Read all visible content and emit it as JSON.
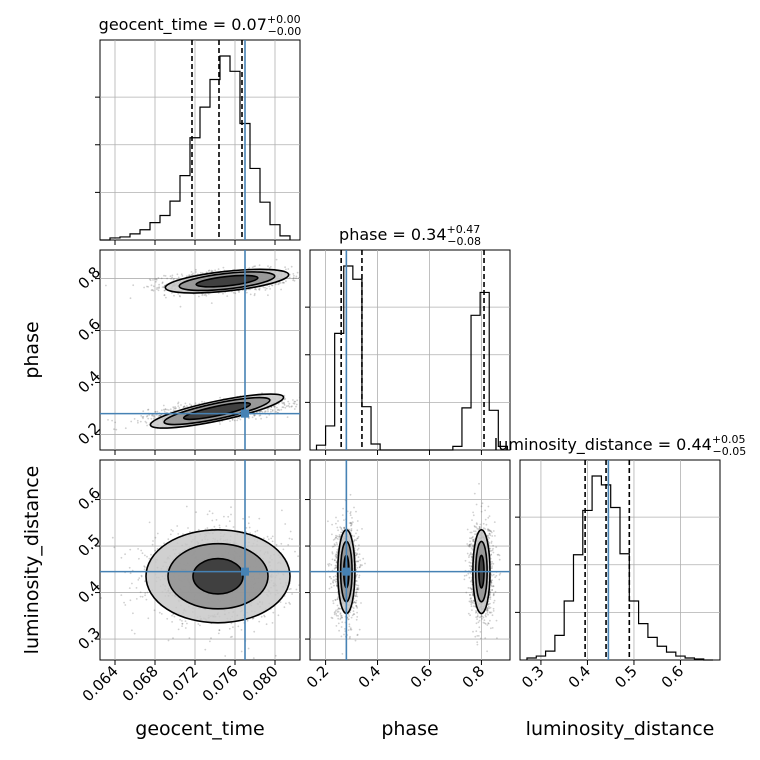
{
  "chart_data": {
    "type": "corner",
    "parameters": [
      {
        "name": "geocent_time",
        "label": "geocent_time",
        "range": [
          0.0625,
          0.0825
        ],
        "ticks": [
          "0.064",
          "0.068",
          "0.072",
          "0.076",
          "0.080"
        ],
        "tick_values": [
          0.064,
          0.068,
          0.072,
          0.076,
          0.08
        ],
        "truth": 0.077,
        "quantiles": [
          0.0717,
          0.0744,
          0.0767
        ],
        "title": {
          "prefix": "geocent_time = 0.07",
          "sup": "+0.00",
          "sub": "−0.00"
        },
        "hist": {
          "edges": [
            0.0625,
            0.0635,
            0.0645,
            0.0655,
            0.0665,
            0.0675,
            0.0685,
            0.0695,
            0.0705,
            0.0715,
            0.0725,
            0.0735,
            0.0745,
            0.0755,
            0.0765,
            0.0775,
            0.0785,
            0.0795,
            0.0805,
            0.0815
          ],
          "counts": [
            0,
            2,
            3,
            6,
            10,
            17,
            24,
            38,
            63,
            100,
            130,
            157,
            180,
            165,
            114,
            70,
            37,
            15,
            4
          ]
        }
      },
      {
        "name": "phase",
        "label": "phase",
        "range": [
          0.14,
          0.91
        ],
        "ticks": [
          "0.2",
          "0.4",
          "0.6",
          "0.8"
        ],
        "tick_values": [
          0.2,
          0.4,
          0.6,
          0.8
        ],
        "truth": 0.28,
        "quantiles": [
          0.26,
          0.34,
          0.81
        ],
        "title": {
          "prefix": "phase = 0.34",
          "sup": "+0.47",
          "sub": "−0.08"
        },
        "hist": {
          "edges": [
            0.165,
            0.2,
            0.235,
            0.27,
            0.305,
            0.34,
            0.375,
            0.41,
            0.445,
            0.48,
            0.515,
            0.55,
            0.585,
            0.62,
            0.655,
            0.69,
            0.725,
            0.76,
            0.795,
            0.83,
            0.865,
            0.9
          ],
          "counts": [
            4,
            20,
            97,
            153,
            142,
            36,
            5,
            0,
            0,
            0,
            0,
            0,
            0,
            0,
            0,
            3,
            35,
            112,
            131,
            33,
            3
          ]
        }
      },
      {
        "name": "luminosity_distance",
        "label": "luminosity_distance",
        "range": [
          0.255,
          0.685
        ],
        "ticks": [
          "0.3",
          "0.4",
          "0.5",
          "0.6"
        ],
        "tick_values": [
          0.3,
          0.4,
          0.5,
          0.6
        ],
        "truth": 0.445,
        "quantiles": [
          0.395,
          0.44,
          0.49
        ],
        "title": {
          "prefix": "luminosity_distance = 0.44",
          "sup": "+0.05",
          "sub": "−0.05"
        },
        "hist": {
          "edges": [
            0.27,
            0.29,
            0.31,
            0.33,
            0.35,
            0.37,
            0.39,
            0.41,
            0.43,
            0.45,
            0.47,
            0.49,
            0.51,
            0.53,
            0.55,
            0.57,
            0.59,
            0.61,
            0.63,
            0.65,
            0.67
          ],
          "counts": [
            2,
            4,
            9,
            25,
            60,
            107,
            152,
            187,
            178,
            155,
            108,
            60,
            37,
            23,
            14,
            8,
            4,
            2,
            1,
            0
          ]
        }
      }
    ],
    "pairs": [
      {
        "x": "geocent_time",
        "y": "phase",
        "clusters": [
          {
            "mx": 0.0752,
            "my": 0.79,
            "sx": 0.003,
            "sy": 0.022,
            "rho": 0.3,
            "levels": [
              [
                0.0031,
                0.018
              ],
              [
                0.0048,
                0.03
              ],
              [
                0.0062,
                0.038
              ]
            ]
          },
          {
            "mx": 0.0742,
            "my": 0.29,
            "sx": 0.0034,
            "sy": 0.022,
            "rho": 0.6,
            "levels": [
              [
                0.0034,
                0.018
              ],
              [
                0.0054,
                0.03
              ],
              [
                0.0068,
                0.038
              ]
            ]
          }
        ]
      },
      {
        "x": "geocent_time",
        "y": "luminosity_distance",
        "clusters": [
          {
            "mx": 0.0743,
            "my": 0.435,
            "sx": 0.0035,
            "sy": 0.05,
            "rho": 0.0,
            "levels": [
              [
                0.0025,
                0.038
              ],
              [
                0.005,
                0.07
              ],
              [
                0.0072,
                0.1
              ]
            ]
          }
        ]
      },
      {
        "x": "phase",
        "y": "luminosity_distance",
        "clusters": [
          {
            "mx": 0.28,
            "my": 0.445,
            "sx": 0.022,
            "sy": 0.05,
            "rho": 0.0,
            "levels": [
              [
                0.01,
                0.035
              ],
              [
                0.022,
                0.065
              ],
              [
                0.033,
                0.09
              ]
            ]
          },
          {
            "mx": 0.8,
            "my": 0.445,
            "sx": 0.022,
            "sy": 0.05,
            "rho": 0.0,
            "levels": [
              [
                0.01,
                0.035
              ],
              [
                0.022,
                0.065
              ],
              [
                0.033,
                0.09
              ]
            ]
          }
        ]
      }
    ],
    "grid": true,
    "colors": {
      "truth": "#4682b4",
      "contour": "#000000",
      "points": "#555555"
    }
  }
}
